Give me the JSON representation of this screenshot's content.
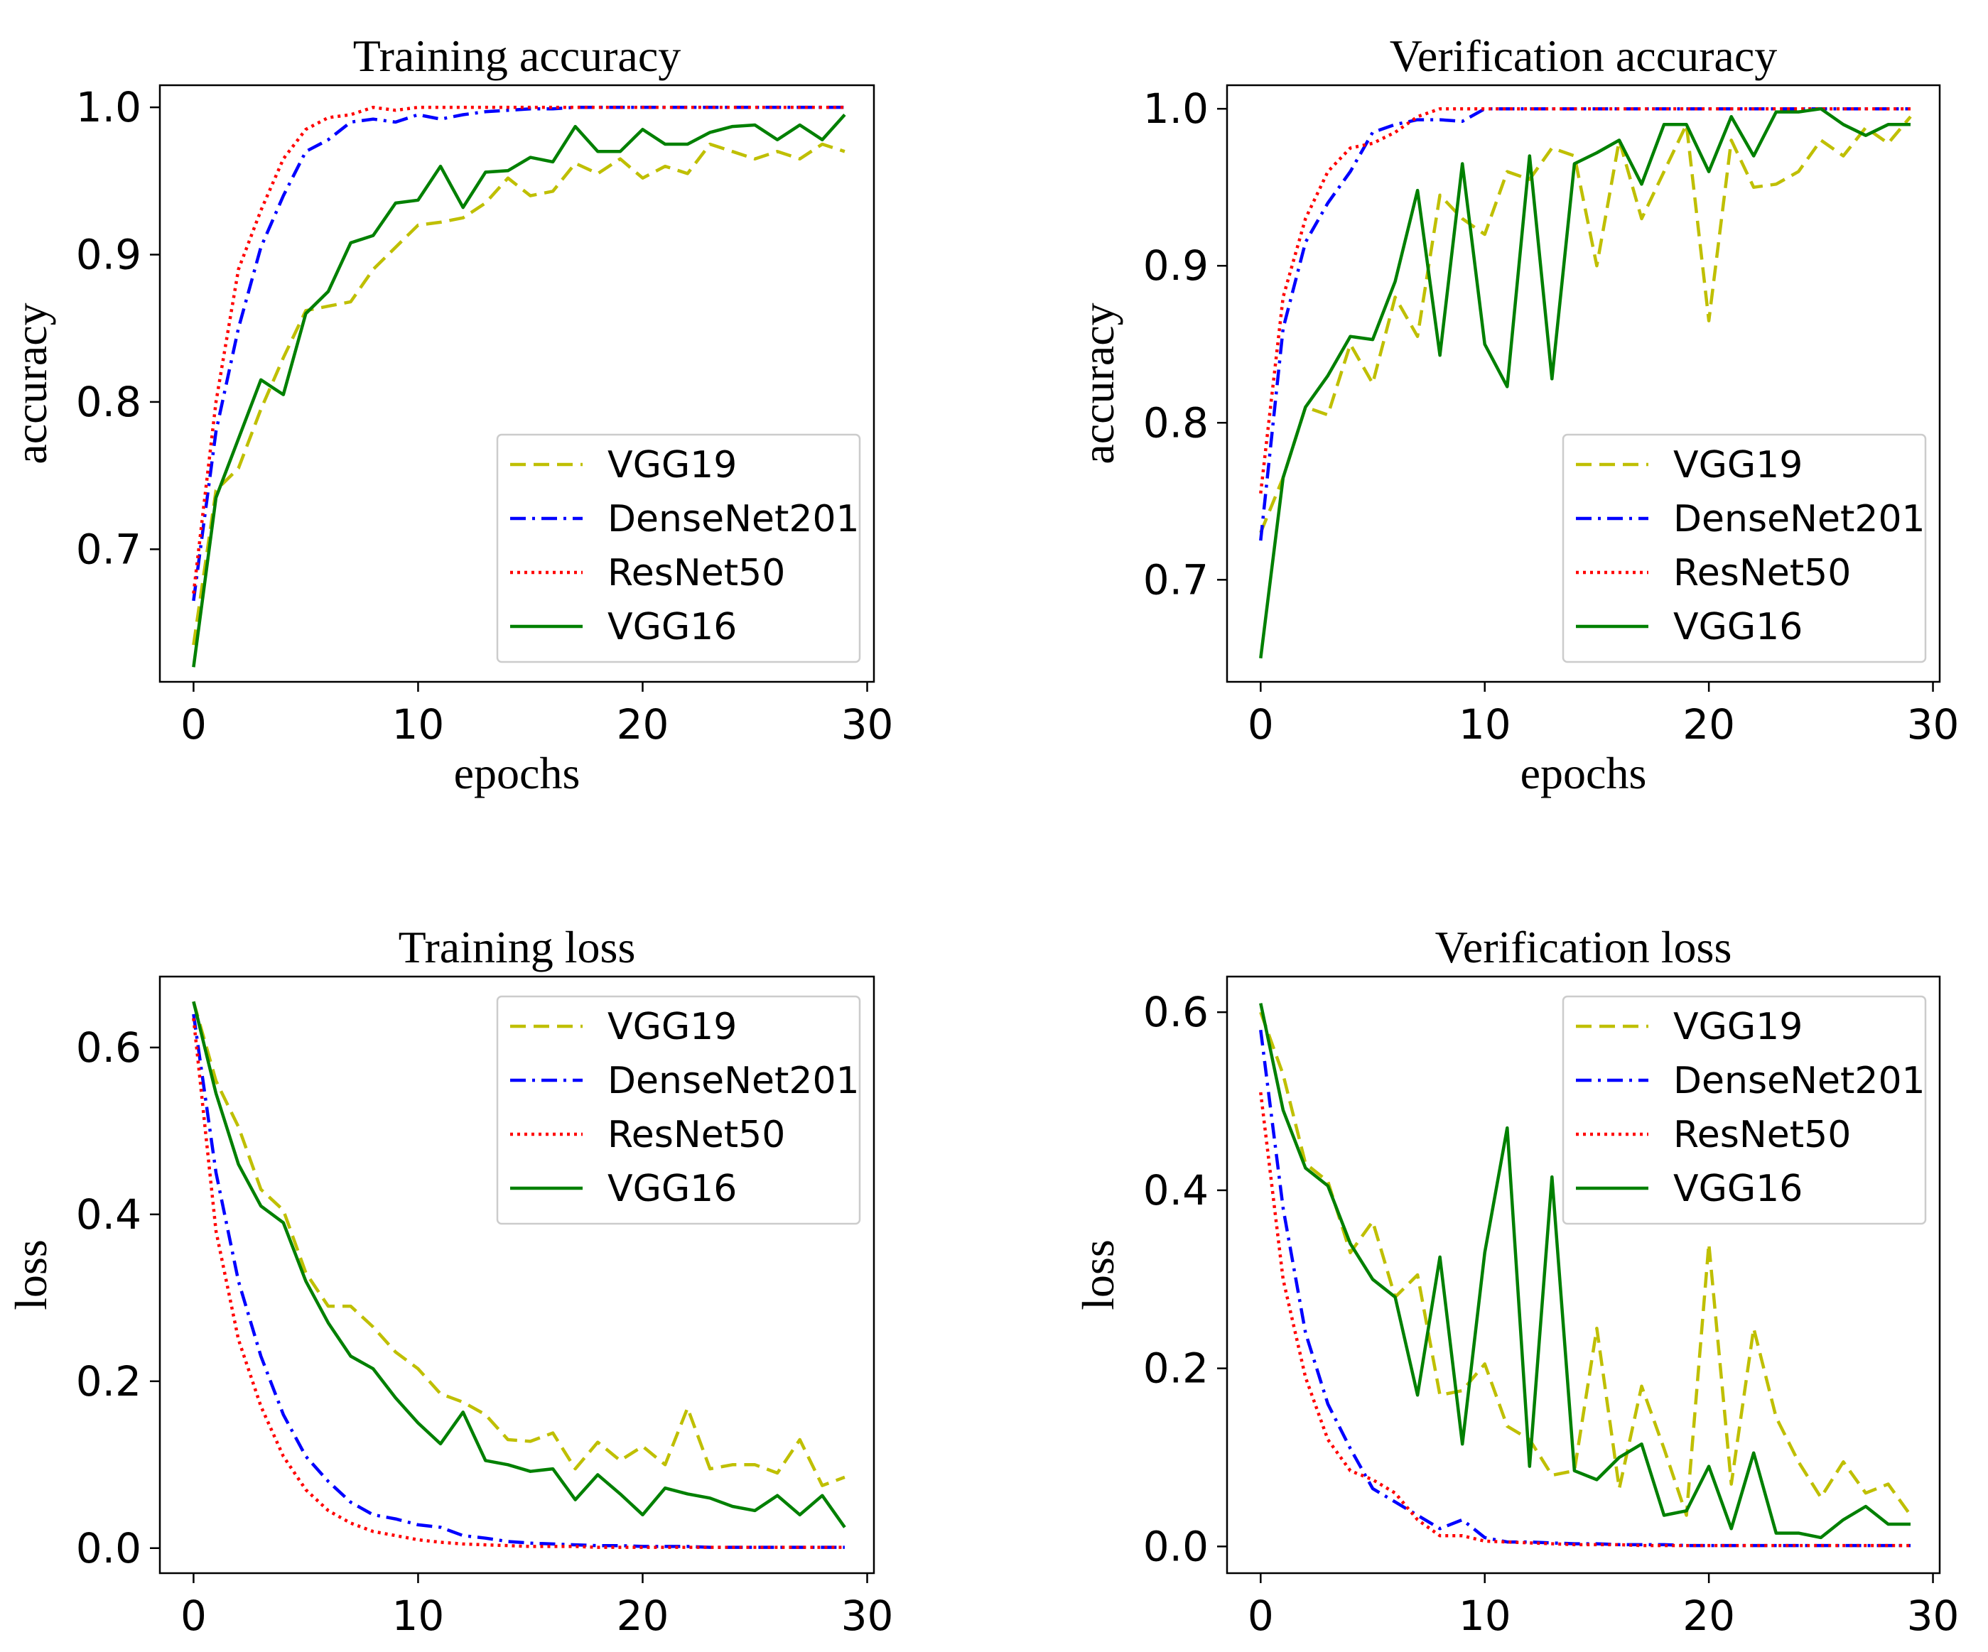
{
  "figure": {
    "legend_order": [
      "VGG19",
      "DenseNet201",
      "ResNet50",
      "VGG16"
    ]
  },
  "series_style": {
    "VGG19": {
      "color": "#bfbf00",
      "dash": "dashed"
    },
    "DenseNet201": {
      "color": "#0000ff",
      "dash": "dashdot"
    },
    "ResNet50": {
      "color": "#ff0000",
      "dash": "dotted"
    },
    "VGG16": {
      "color": "#008000",
      "dash": "solid"
    }
  },
  "chart_data": [
    {
      "type": "line",
      "title": "Training accuracy",
      "xlabel": "epochs",
      "ylabel": "accuracy",
      "xlim": [
        -1.5,
        30.3
      ],
      "ylim": [
        0.61,
        1.015
      ],
      "xticks": [
        0,
        10,
        20,
        30
      ],
      "yticks": [
        0.7,
        0.8,
        0.9,
        1.0
      ],
      "ytick_labels": [
        "0.7",
        "0.8",
        "0.9",
        "1.0"
      ],
      "legend_position": "lower-right",
      "x": [
        0,
        1,
        2,
        3,
        4,
        5,
        6,
        7,
        8,
        9,
        10,
        11,
        12,
        13,
        14,
        15,
        16,
        17,
        18,
        19,
        20,
        21,
        22,
        23,
        24,
        25,
        26,
        27,
        28,
        29
      ],
      "series": [
        {
          "name": "VGG19",
          "values": [
            0.635,
            0.74,
            0.755,
            0.795,
            0.83,
            0.862,
            0.865,
            0.868,
            0.89,
            0.905,
            0.92,
            0.922,
            0.925,
            0.935,
            0.952,
            0.94,
            0.943,
            0.962,
            0.955,
            0.965,
            0.952,
            0.96,
            0.955,
            0.975,
            0.97,
            0.965,
            0.97,
            0.965,
            0.975,
            0.97
          ]
        },
        {
          "name": "DenseNet201",
          "values": [
            0.665,
            0.78,
            0.85,
            0.905,
            0.94,
            0.97,
            0.978,
            0.99,
            0.992,
            0.99,
            0.995,
            0.992,
            0.995,
            0.997,
            0.998,
            0.999,
            0.999,
            1.0,
            1.0,
            1.0,
            1.0,
            1.0,
            1.0,
            1.0,
            1.0,
            1.0,
            1.0,
            1.0,
            1.0,
            1.0
          ]
        },
        {
          "name": "ResNet50",
          "values": [
            0.67,
            0.8,
            0.89,
            0.93,
            0.965,
            0.985,
            0.993,
            0.995,
            1.0,
            0.998,
            1.0,
            1.0,
            1.0,
            1.0,
            1.0,
            1.0,
            1.0,
            1.0,
            1.0,
            1.0,
            1.0,
            1.0,
            1.0,
            1.0,
            1.0,
            1.0,
            1.0,
            1.0,
            1.0,
            1.0
          ]
        },
        {
          "name": "VGG16",
          "values": [
            0.62,
            0.735,
            0.775,
            0.815,
            0.805,
            0.86,
            0.875,
            0.908,
            0.913,
            0.935,
            0.937,
            0.96,
            0.932,
            0.956,
            0.957,
            0.966,
            0.963,
            0.987,
            0.97,
            0.97,
            0.985,
            0.975,
            0.975,
            0.983,
            0.987,
            0.988,
            0.978,
            0.988,
            0.978,
            0.995
          ]
        }
      ]
    },
    {
      "type": "line",
      "title": "Verification accuracy",
      "xlabel": "epochs",
      "ylabel": "accuracy",
      "xlim": [
        -1.5,
        30.3
      ],
      "ylim": [
        0.635,
        1.015
      ],
      "xticks": [
        0,
        10,
        20,
        30
      ],
      "yticks": [
        0.7,
        0.8,
        0.9,
        1.0
      ],
      "ytick_labels": [
        "0.7",
        "0.8",
        "0.9",
        "1.0"
      ],
      "legend_position": "lower-right",
      "x": [
        0,
        1,
        2,
        3,
        4,
        5,
        6,
        7,
        8,
        9,
        10,
        11,
        12,
        13,
        14,
        15,
        16,
        17,
        18,
        19,
        20,
        21,
        22,
        23,
        24,
        25,
        26,
        27,
        28,
        29
      ],
      "series": [
        {
          "name": "VGG19",
          "values": [
            0.73,
            0.765,
            0.81,
            0.805,
            0.85,
            0.825,
            0.88,
            0.855,
            0.945,
            0.93,
            0.92,
            0.96,
            0.955,
            0.975,
            0.97,
            0.9,
            0.98,
            0.93,
            0.96,
            0.99,
            0.865,
            0.98,
            0.95,
            0.952,
            0.96,
            0.98,
            0.97,
            0.988,
            0.978,
            0.995
          ]
        },
        {
          "name": "DenseNet201",
          "values": [
            0.725,
            0.86,
            0.915,
            0.94,
            0.96,
            0.985,
            0.99,
            0.993,
            0.993,
            0.992,
            1.0,
            1.0,
            1.0,
            1.0,
            1.0,
            1.0,
            1.0,
            1.0,
            1.0,
            1.0,
            1.0,
            1.0,
            1.0,
            1.0,
            1.0,
            1.0,
            1.0,
            1.0,
            1.0,
            1.0
          ]
        },
        {
          "name": "ResNet50",
          "values": [
            0.755,
            0.88,
            0.93,
            0.96,
            0.975,
            0.978,
            0.985,
            0.995,
            1.0,
            1.0,
            1.0,
            1.0,
            1.0,
            1.0,
            1.0,
            1.0,
            1.0,
            1.0,
            1.0,
            1.0,
            1.0,
            1.0,
            1.0,
            1.0,
            1.0,
            1.0,
            1.0,
            1.0,
            1.0,
            1.0
          ]
        },
        {
          "name": "VGG16",
          "values": [
            0.65,
            0.765,
            0.81,
            0.83,
            0.855,
            0.853,
            0.89,
            0.948,
            0.843,
            0.965,
            0.85,
            0.823,
            0.97,
            0.828,
            0.965,
            0.972,
            0.98,
            0.952,
            0.99,
            0.99,
            0.96,
            0.995,
            0.97,
            0.998,
            0.998,
            1.0,
            0.99,
            0.983,
            0.99,
            0.99
          ]
        }
      ]
    },
    {
      "type": "line",
      "title": "Training loss",
      "xlabel": "",
      "ylabel": "loss",
      "xlim": [
        -1.5,
        30.3
      ],
      "ylim": [
        -0.03,
        0.685
      ],
      "xticks": [
        0,
        10,
        20,
        30
      ],
      "yticks": [
        0.0,
        0.2,
        0.4,
        0.6
      ],
      "ytick_labels": [
        "0.0",
        "0.2",
        "0.4",
        "0.6"
      ],
      "legend_position": "upper-right",
      "x": [
        0,
        1,
        2,
        3,
        4,
        5,
        6,
        7,
        8,
        9,
        10,
        11,
        12,
        13,
        14,
        15,
        16,
        17,
        18,
        19,
        20,
        21,
        22,
        23,
        24,
        25,
        26,
        27,
        28,
        29
      ],
      "series": [
        {
          "name": "VGG19",
          "values": [
            0.655,
            0.56,
            0.505,
            0.43,
            0.405,
            0.33,
            0.29,
            0.29,
            0.265,
            0.235,
            0.215,
            0.185,
            0.175,
            0.16,
            0.13,
            0.128,
            0.138,
            0.095,
            0.127,
            0.105,
            0.122,
            0.1,
            0.168,
            0.095,
            0.1,
            0.1,
            0.09,
            0.13,
            0.075,
            0.085
          ]
        },
        {
          "name": "DenseNet201",
          "values": [
            0.64,
            0.45,
            0.32,
            0.23,
            0.16,
            0.11,
            0.08,
            0.055,
            0.04,
            0.035,
            0.028,
            0.025,
            0.015,
            0.012,
            0.008,
            0.006,
            0.005,
            0.004,
            0.003,
            0.003,
            0.002,
            0.002,
            0.002,
            0.001,
            0.001,
            0.001,
            0.001,
            0.001,
            0.001,
            0.001
          ]
        },
        {
          "name": "ResNet50",
          "values": [
            0.635,
            0.38,
            0.25,
            0.17,
            0.11,
            0.07,
            0.045,
            0.03,
            0.02,
            0.015,
            0.01,
            0.007,
            0.005,
            0.004,
            0.003,
            0.002,
            0.002,
            0.002,
            0.001,
            0.001,
            0.001,
            0.001,
            0.001,
            0.001,
            0.001,
            0.001,
            0.001,
            0.001,
            0.001,
            0.001
          ]
        },
        {
          "name": "VGG16",
          "values": [
            0.655,
            0.545,
            0.46,
            0.41,
            0.39,
            0.32,
            0.27,
            0.23,
            0.215,
            0.18,
            0.15,
            0.125,
            0.163,
            0.105,
            0.1,
            0.092,
            0.095,
            0.058,
            0.088,
            0.065,
            0.04,
            0.072,
            0.065,
            0.06,
            0.05,
            0.045,
            0.063,
            0.04,
            0.063,
            0.025
          ]
        }
      ]
    },
    {
      "type": "line",
      "title": "Verification loss",
      "xlabel": "",
      "ylabel": "loss",
      "xlim": [
        -1.5,
        30.3
      ],
      "ylim": [
        -0.03,
        0.64
      ],
      "xticks": [
        0,
        10,
        20,
        30
      ],
      "yticks": [
        0.0,
        0.2,
        0.4,
        0.6
      ],
      "ytick_labels": [
        "0.0",
        "0.2",
        "0.4",
        "0.6"
      ],
      "legend_position": "upper-right",
      "x": [
        0,
        1,
        2,
        3,
        4,
        5,
        6,
        7,
        8,
        9,
        10,
        11,
        12,
        13,
        14,
        15,
        16,
        17,
        18,
        19,
        20,
        21,
        22,
        23,
        24,
        25,
        26,
        27,
        28,
        29
      ],
      "series": [
        {
          "name": "VGG19",
          "values": [
            0.6,
            0.53,
            0.43,
            0.41,
            0.33,
            0.365,
            0.28,
            0.305,
            0.17,
            0.175,
            0.205,
            0.135,
            0.12,
            0.08,
            0.085,
            0.245,
            0.065,
            0.18,
            0.11,
            0.035,
            0.34,
            0.07,
            0.245,
            0.145,
            0.095,
            0.055,
            0.095,
            0.06,
            0.07,
            0.035
          ]
        },
        {
          "name": "DenseNet201",
          "values": [
            0.58,
            0.38,
            0.24,
            0.16,
            0.11,
            0.065,
            0.05,
            0.035,
            0.02,
            0.03,
            0.01,
            0.005,
            0.005,
            0.004,
            0.003,
            0.003,
            0.002,
            0.002,
            0.002,
            0.001,
            0.001,
            0.001,
            0.001,
            0.001,
            0.001,
            0.001,
            0.001,
            0.001,
            0.001,
            0.001
          ]
        },
        {
          "name": "ResNet50",
          "values": [
            0.51,
            0.3,
            0.19,
            0.12,
            0.085,
            0.075,
            0.06,
            0.03,
            0.012,
            0.012,
            0.006,
            0.005,
            0.004,
            0.003,
            0.002,
            0.002,
            0.002,
            0.001,
            0.001,
            0.001,
            0.001,
            0.001,
            0.001,
            0.001,
            0.001,
            0.001,
            0.001,
            0.001,
            0.001,
            0.001
          ]
        },
        {
          "name": "VGG16",
          "values": [
            0.61,
            0.49,
            0.425,
            0.405,
            0.34,
            0.3,
            0.28,
            0.17,
            0.325,
            0.115,
            0.33,
            0.47,
            0.09,
            0.415,
            0.085,
            0.075,
            0.1,
            0.115,
            0.035,
            0.04,
            0.09,
            0.02,
            0.105,
            0.015,
            0.015,
            0.01,
            0.03,
            0.045,
            0.025,
            0.025
          ]
        }
      ]
    }
  ]
}
